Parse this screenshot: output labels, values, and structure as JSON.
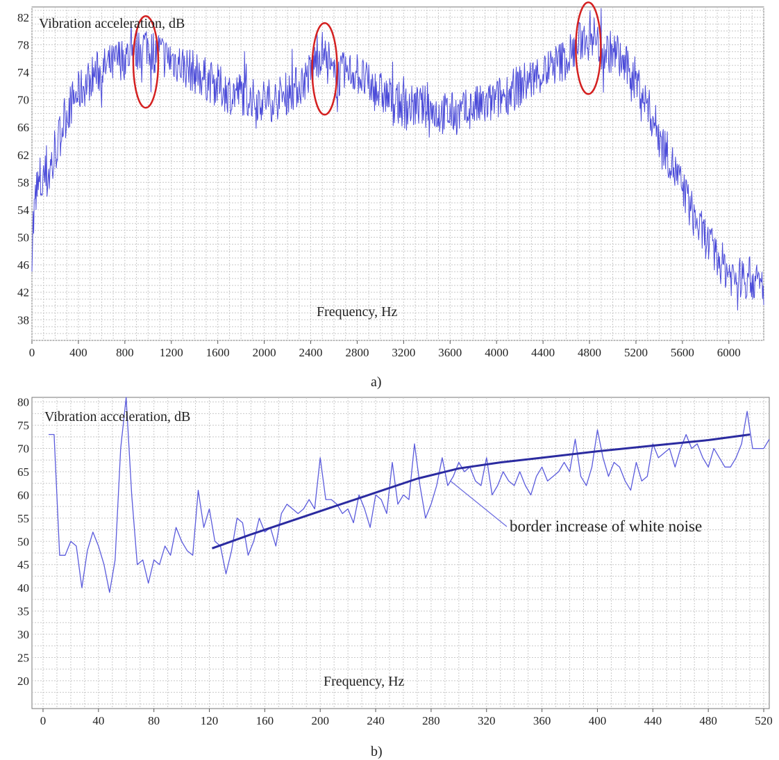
{
  "chart_data": [
    {
      "type": "line",
      "panel_label": "a)",
      "ylabel": "Vibration acceleration, dB",
      "xlabel": "Frequency, Hz",
      "xlim": [
        0,
        6300
      ],
      "ylim": [
        35,
        83.5
      ],
      "xticks": [
        0,
        400,
        800,
        1200,
        1600,
        2000,
        2400,
        2800,
        3200,
        3600,
        4000,
        4400,
        4800,
        5200,
        5600,
        6000
      ],
      "yticks": [
        38,
        42,
        46,
        50,
        54,
        58,
        62,
        66,
        70,
        74,
        78,
        82
      ],
      "grid": true,
      "series_color": "#4a4ad8",
      "highlight_color": "#d42020",
      "series": [
        {
          "x": [
            0,
            40,
            80,
            120,
            160,
            200,
            240,
            280,
            320,
            360,
            400,
            450,
            500,
            550,
            600,
            650,
            700,
            750,
            800,
            850,
            900,
            950,
            1000,
            1050,
            1100,
            1150,
            1200,
            1300,
            1400,
            1500,
            1600,
            1700,
            1800,
            1900,
            2000,
            2100,
            2200,
            2300,
            2400,
            2450,
            2500,
            2550,
            2600,
            2700,
            2800,
            2900,
            3000,
            3100,
            3200,
            3300,
            3400,
            3500,
            3600,
            3700,
            3800,
            3900,
            4000,
            4100,
            4200,
            4300,
            4400,
            4500,
            4600,
            4700,
            4750,
            4800,
            4850,
            4900,
            4950,
            5000,
            5050,
            5100,
            5150,
            5200,
            5250,
            5300,
            5350,
            5400,
            5450,
            5500,
            5550,
            5600,
            5650,
            5700,
            5750,
            5800,
            5850,
            5900,
            5950,
            6000,
            6050,
            6100,
            6150,
            6200,
            6250,
            6300
          ],
          "y": [
            50,
            56,
            58,
            59,
            60,
            62,
            65,
            67,
            69,
            70,
            71,
            72,
            73,
            74,
            74,
            75,
            75,
            76,
            76,
            77,
            77,
            78,
            78,
            77,
            77,
            76,
            76,
            75,
            74,
            73,
            72,
            71,
            71,
            70,
            70,
            70,
            71,
            72,
            74,
            76,
            77,
            75,
            73,
            74,
            74,
            72,
            71,
            70,
            69,
            69,
            69,
            68,
            68,
            68,
            69,
            69,
            70,
            71,
            72,
            73,
            74,
            75,
            76,
            78,
            79,
            80,
            79,
            77,
            77,
            77,
            76,
            75,
            74,
            73,
            71,
            69,
            67,
            65,
            63,
            61,
            59,
            57,
            55,
            53,
            51,
            50,
            48,
            47,
            46,
            45,
            44,
            44,
            44,
            44,
            43,
            43
          ]
        }
      ],
      "highlights": [
        {
          "x": 980,
          "y": 75.5
        },
        {
          "x": 2520,
          "y": 74.5
        },
        {
          "x": 4790,
          "y": 77.5
        }
      ]
    },
    {
      "type": "line",
      "panel_label": "b)",
      "ylabel": "Vibration acceleration, dB",
      "xlabel": "Frequency, Hz",
      "xlim": [
        -8,
        524
      ],
      "ylim": [
        14,
        81
      ],
      "xticks": [
        0,
        40,
        80,
        120,
        160,
        200,
        240,
        280,
        320,
        360,
        400,
        440,
        480,
        520
      ],
      "yticks": [
        20,
        25,
        30,
        35,
        40,
        45,
        50,
        55,
        60,
        65,
        70,
        75,
        80
      ],
      "grid": true,
      "annotation": "border increase of white noise",
      "series": [
        {
          "x": [
            4,
            8,
            12,
            16,
            20,
            24,
            28,
            32,
            36,
            40,
            44,
            48,
            52,
            56,
            60,
            64,
            68,
            72,
            76,
            80,
            84,
            88,
            92,
            96,
            100,
            104,
            108,
            112,
            116,
            120,
            124,
            128,
            132,
            136,
            140,
            144,
            148,
            152,
            156,
            160,
            164,
            168,
            172,
            176,
            180,
            184,
            188,
            192,
            196,
            200,
            204,
            208,
            212,
            216,
            220,
            224,
            228,
            232,
            236,
            240,
            244,
            248,
            252,
            256,
            260,
            264,
            268,
            272,
            276,
            280,
            284,
            288,
            292,
            296,
            300,
            304,
            308,
            312,
            316,
            320,
            324,
            328,
            332,
            336,
            340,
            344,
            348,
            352,
            356,
            360,
            364,
            368,
            372,
            376,
            380,
            384,
            388,
            392,
            396,
            400,
            404,
            408,
            412,
            416,
            420,
            424,
            428,
            432,
            436,
            440,
            444,
            448,
            452,
            456,
            460,
            464,
            468,
            472,
            476,
            480,
            484,
            488,
            492,
            496,
            500,
            504,
            508,
            512,
            516,
            520,
            524
          ],
          "y": [
            73,
            73,
            47,
            47,
            50,
            49,
            40,
            48,
            52,
            49,
            45,
            39,
            46,
            70,
            81,
            60,
            45,
            46,
            41,
            46,
            45,
            49,
            47,
            53,
            50,
            48,
            47,
            61,
            53,
            57,
            50,
            49,
            43,
            48,
            55,
            54,
            47,
            50,
            55,
            52,
            53,
            49,
            56,
            58,
            57,
            56,
            57,
            59,
            57,
            68,
            59,
            59,
            58,
            56,
            57,
            54,
            60,
            57,
            53,
            60,
            59,
            56,
            67,
            58,
            60,
            59,
            71,
            62,
            55,
            58,
            62,
            68,
            62,
            64,
            67,
            65,
            66,
            63,
            62,
            68,
            60,
            62,
            65,
            63,
            62,
            65,
            62,
            60,
            64,
            66,
            63,
            64,
            65,
            67,
            65,
            72,
            64,
            62,
            66,
            74,
            68,
            64,
            67,
            66,
            63,
            61,
            67,
            63,
            64,
            71,
            68,
            69,
            70,
            66,
            70,
            73,
            70,
            71,
            68,
            66,
            70,
            68,
            66,
            66,
            68,
            71,
            78,
            70,
            70,
            70,
            72
          ],
          "color": "#5a5adc"
        },
        {
          "x": [
            122,
            150,
            180,
            210,
            240,
            270,
            300,
            330,
            360,
            400,
            440,
            480,
            510
          ],
          "y": [
            48.5,
            51.5,
            54.5,
            57.5,
            60.5,
            63.5,
            65.7,
            67,
            68,
            69.4,
            70.6,
            71.8,
            73
          ],
          "color": "#2b2ba0"
        }
      ],
      "annotation_target": {
        "x": 294,
        "y": 63
      }
    }
  ]
}
